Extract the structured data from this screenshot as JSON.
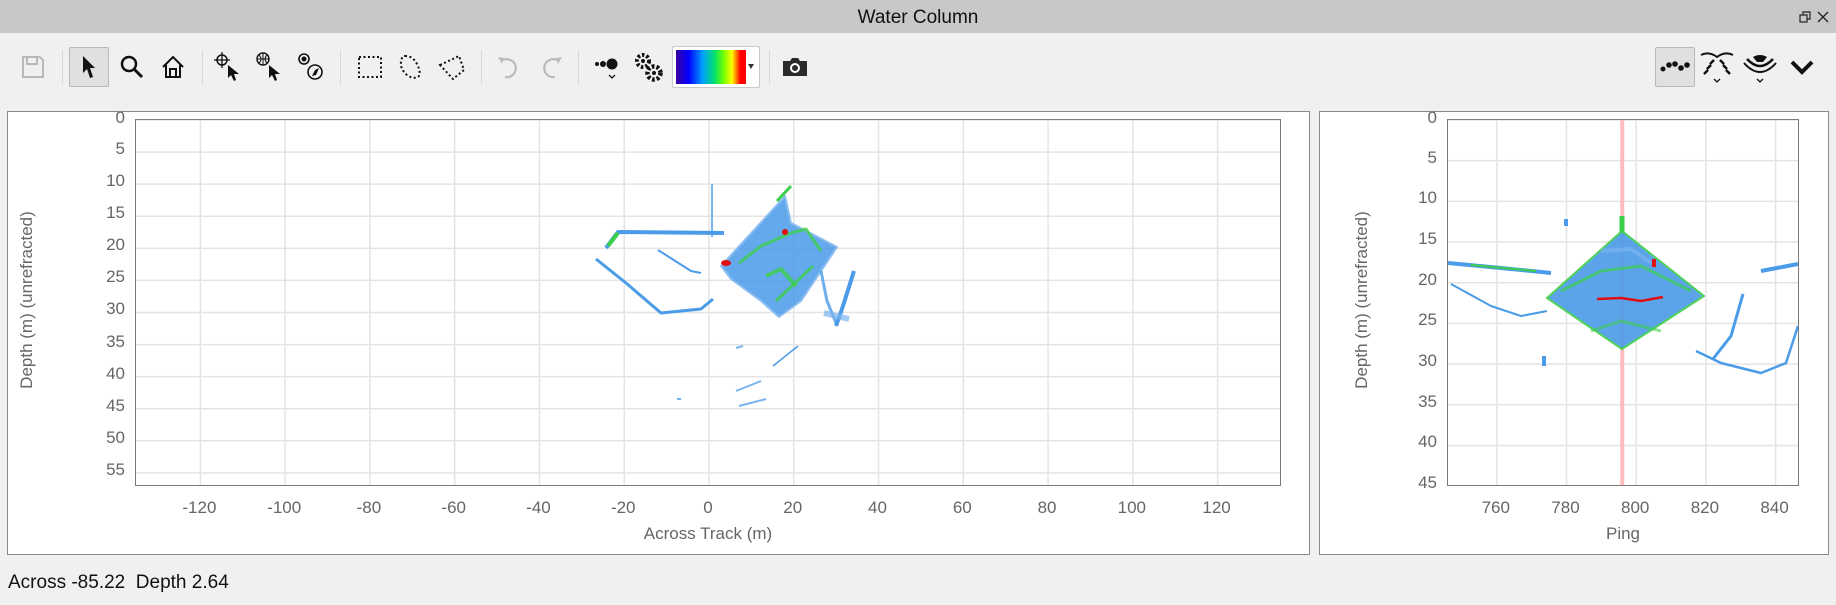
{
  "window": {
    "title": "Water Column"
  },
  "toolbar": {
    "left_tools": [
      "save-icon",
      "pointer-icon",
      "zoom-icon",
      "home-icon",
      "crosshair-pick-icon",
      "geo-pick-icon",
      "compass-pick-icon",
      "rectangle-select-icon",
      "lasso-select-icon",
      "polygon-select-icon",
      "undo-icon",
      "redo-icon",
      "point-size-icon",
      "settings-icon",
      "colormap-dropdown",
      "camera-icon"
    ],
    "right_tools": [
      "point-display-icon",
      "beam-fan-icon",
      "sonar-swath-icon",
      "chevron-down-icon"
    ],
    "colormap": [
      "#3a00a0",
      "#0000ff",
      "#00a0ff",
      "#00e070",
      "#70ff00",
      "#ffff00",
      "#ff0000"
    ]
  },
  "across_plot": {
    "xlabel": "Across Track (m)",
    "ylabel": "Depth (m) (unrefracted)",
    "xticks": [
      "-120",
      "-100",
      "-80",
      "-60",
      "-40",
      "-20",
      "0",
      "20",
      "40",
      "60",
      "80",
      "100",
      "120"
    ],
    "xtick_values": [
      -120,
      -100,
      -80,
      -60,
      -40,
      -20,
      0,
      20,
      40,
      60,
      80,
      100,
      120
    ],
    "yticks": [
      "0",
      "5",
      "10",
      "15",
      "20",
      "25",
      "30",
      "35",
      "40",
      "45",
      "50",
      "55"
    ],
    "ytick_values": [
      0,
      5,
      10,
      15,
      20,
      25,
      30,
      35,
      40,
      45,
      50,
      55
    ],
    "xlim": [
      -135.2,
      135.2
    ],
    "ylim": [
      0,
      57.2
    ]
  },
  "ping_plot": {
    "xlabel": "Ping",
    "ylabel": "Depth (m) (unrefracted)",
    "xticks": [
      "760",
      "780",
      "800",
      "820",
      "840"
    ],
    "xtick_values": [
      760,
      780,
      800,
      820,
      840
    ],
    "yticks": [
      "0",
      "5",
      "10",
      "15",
      "20",
      "25",
      "30",
      "35",
      "40",
      "45"
    ],
    "ytick_values": [
      0,
      5,
      10,
      15,
      20,
      25,
      30,
      35,
      40,
      45
    ],
    "xlim": [
      746,
      847
    ],
    "ylim": [
      0,
      45.1
    ],
    "current_ping": 796,
    "current_ping_color": "#ffbcbc"
  },
  "status": {
    "across_label": "Across",
    "across_value": "-85.22",
    "depth_label": "Depth",
    "depth_value": "2.64"
  }
}
